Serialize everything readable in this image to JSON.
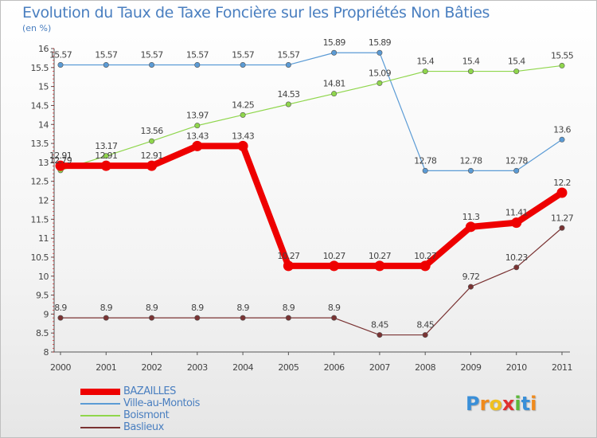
{
  "chart_data": {
    "type": "line",
    "title": "Evolution du Taux de Taxe Foncière sur les Propriétés Non Bâties",
    "unit_label": "(en %)",
    "categories": [
      "2000",
      "2001",
      "2002",
      "2003",
      "2004",
      "2005",
      "2006",
      "2007",
      "2008",
      "2009",
      "2010",
      "2011"
    ],
    "ylim": [
      8,
      16
    ],
    "yticks": [
      "8",
      "8.5",
      "9",
      "9.5",
      "10",
      "10.5",
      "11",
      "11.5",
      "12",
      "12.5",
      "13",
      "13.5",
      "14",
      "14.5",
      "15",
      "15.5",
      "16"
    ],
    "grid": false,
    "legend_position": "bottom-left",
    "series": [
      {
        "name": "BAZAILLES",
        "color": "#ee0000",
        "emphasis": true,
        "values": [
          12.91,
          12.91,
          12.91,
          13.43,
          13.43,
          10.27,
          10.27,
          10.27,
          10.27,
          11.3,
          11.41,
          12.2
        ],
        "labels": [
          "12.91",
          "12.91",
          "12.91",
          "13.43",
          "13.43",
          "10.27",
          "10.27",
          "10.27",
          "10.27",
          "11.3",
          "11.41",
          "12.2"
        ]
      },
      {
        "name": "Ville-au-Montois",
        "color": "#5b9bd5",
        "emphasis": false,
        "values": [
          15.57,
          15.57,
          15.57,
          15.57,
          15.57,
          15.57,
          15.89,
          15.89,
          12.78,
          12.78,
          12.78,
          13.6
        ],
        "labels": [
          "15.57",
          "15.57",
          "15.57",
          "15.57",
          "15.57",
          "15.57",
          "15.89",
          "15.89",
          "12.78",
          "12.78",
          "12.78",
          "13.6"
        ]
      },
      {
        "name": "Boismont",
        "color": "#8fd64c",
        "emphasis": false,
        "values": [
          12.79,
          13.17,
          13.56,
          13.97,
          14.25,
          14.53,
          14.81,
          15.09,
          15.4,
          15.4,
          15.4,
          15.55
        ],
        "labels": [
          "12.79",
          "13.17",
          "13.56",
          "13.97",
          "14.25",
          "14.53",
          "14.81",
          "15.09",
          "15.4",
          "15.4",
          "15.4",
          "15.55"
        ]
      },
      {
        "name": "Baslieux",
        "color": "#7a3333",
        "emphasis": false,
        "values": [
          8.9,
          8.9,
          8.9,
          8.9,
          8.9,
          8.9,
          8.9,
          8.45,
          8.45,
          9.72,
          10.23,
          11.27
        ],
        "labels": [
          "8.9",
          "8.9",
          "8.9",
          "8.9",
          "8.9",
          "8.9",
          "8.9",
          "8.45",
          "8.45",
          "9.72",
          "10.23",
          "11.27"
        ]
      }
    ]
  },
  "logo": {
    "letters": [
      "P",
      "r",
      "o",
      "x",
      "i",
      "t",
      "i"
    ],
    "colors": [
      "#3a8fd8",
      "#f08a1c",
      "#f0c020",
      "#e03030",
      "#5cb83a",
      "#3a8fd8",
      "#f08a1c"
    ]
  }
}
